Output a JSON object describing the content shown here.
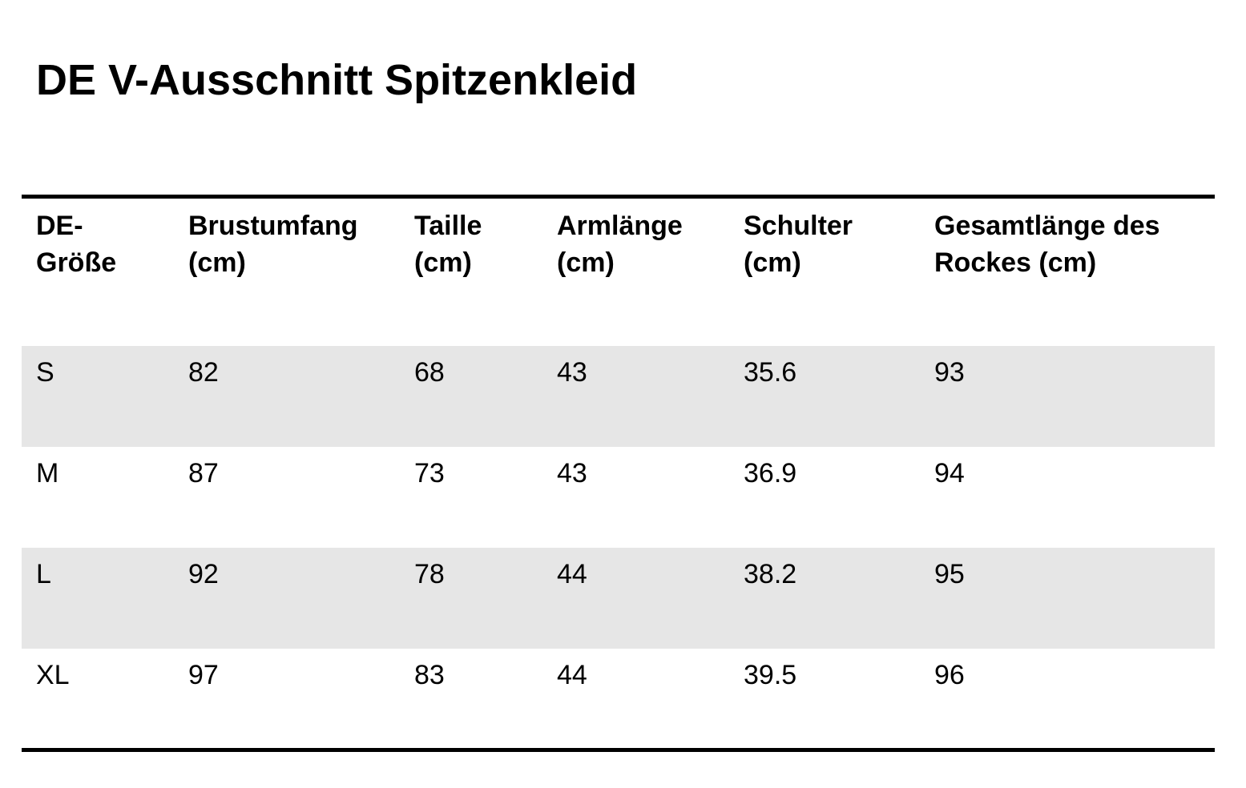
{
  "title": "DE V-Ausschnitt Spitzenkleid",
  "table": {
    "headers": [
      [
        "DE-",
        "Größe"
      ],
      [
        "Brustumfang",
        "(cm)"
      ],
      [
        "Taille",
        "(cm)"
      ],
      [
        "Armlänge",
        "(cm)"
      ],
      [
        "Schulter",
        "(cm)"
      ],
      [
        "Gesamtlänge des",
        "Rockes (cm)"
      ]
    ],
    "rows": [
      [
        "S",
        "82",
        "68",
        "43",
        "35.6",
        "93"
      ],
      [
        "M",
        "87",
        "73",
        "43",
        "36.9",
        "94"
      ],
      [
        "L",
        "92",
        "78",
        "44",
        "38.2",
        "95"
      ],
      [
        "XL",
        "97",
        "83",
        "44",
        "39.5",
        "96"
      ]
    ]
  },
  "colors": {
    "text": "#000000",
    "rule": "#000000",
    "shaded_row": "#e6e6e6",
    "background": "#ffffff"
  }
}
